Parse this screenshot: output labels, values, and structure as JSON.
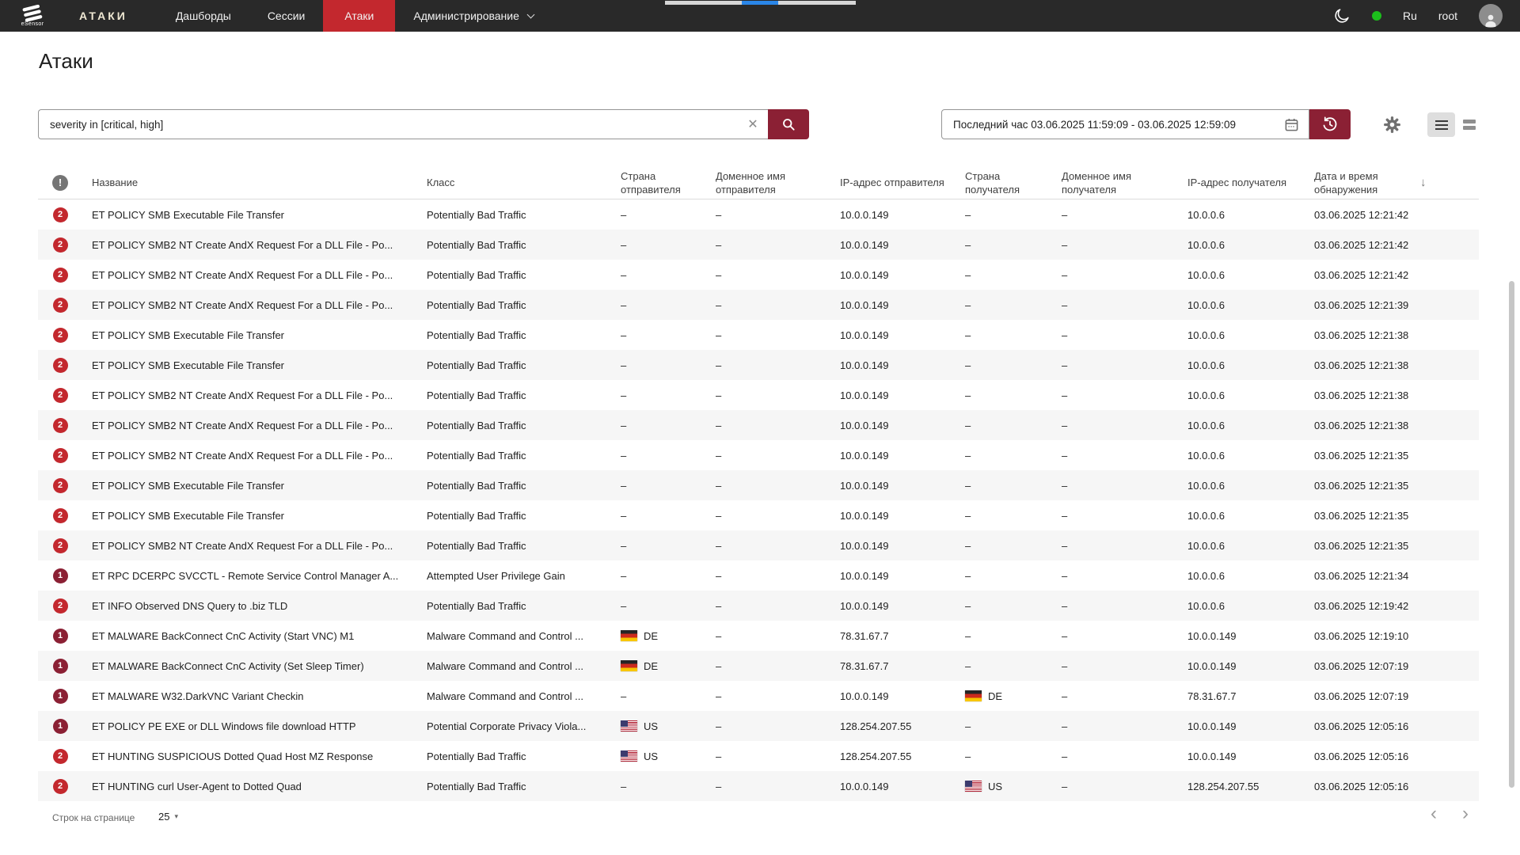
{
  "topnav": {
    "logo_text": "eSensor",
    "brand": "АТАКИ",
    "items": [
      {
        "label": "Дашборды",
        "active": false
      },
      {
        "label": "Сессии",
        "active": false
      },
      {
        "label": "Атаки",
        "active": true
      },
      {
        "label": "Администрирование",
        "active": false,
        "has_dropdown": true
      }
    ],
    "language": "Ru",
    "username": "root"
  },
  "page": {
    "title": "Атаки"
  },
  "toolbar": {
    "search_value": "severity in [critical, high]",
    "date_range": "Последний час 03.06.2025 11:59:09 - 03.06.2025 12:59:09"
  },
  "icons": {
    "warn": "!",
    "clear": "✕",
    "sort_desc": "↓",
    "dropdown": "▾",
    "prev": "‹",
    "next": "›"
  },
  "colors": {
    "nav_bg": "#292929",
    "accent_red": "#c3282e",
    "maroon": "#8b2034",
    "progress_blue": "#2a86e8",
    "status_green": "#1cbe1c"
  },
  "table": {
    "columns": [
      "",
      "Название",
      "Класс",
      "Страна отправителя",
      "Доменное имя отправителя",
      "IP-адрес отправителя",
      "Страна получателя",
      "Доменное имя получателя",
      "IP-адрес получателя",
      "Дата и время обнаружения"
    ],
    "rows": [
      {
        "severity": "2",
        "name": "ET POLICY SMB Executable File Transfer",
        "class": "Potentially Bad Traffic",
        "src_country": "–",
        "src_domain": "–",
        "src_ip": "10.0.0.149",
        "dst_country": "–",
        "dst_domain": "–",
        "dst_ip": "10.0.0.6",
        "time": "03.06.2025 12:21:42"
      },
      {
        "severity": "2",
        "name": "ET POLICY SMB2 NT Create AndX Request For a DLL File - Po...",
        "class": "Potentially Bad Traffic",
        "src_country": "–",
        "src_domain": "–",
        "src_ip": "10.0.0.149",
        "dst_country": "–",
        "dst_domain": "–",
        "dst_ip": "10.0.0.6",
        "time": "03.06.2025 12:21:42"
      },
      {
        "severity": "2",
        "name": "ET POLICY SMB2 NT Create AndX Request For a DLL File - Po...",
        "class": "Potentially Bad Traffic",
        "src_country": "–",
        "src_domain": "–",
        "src_ip": "10.0.0.149",
        "dst_country": "–",
        "dst_domain": "–",
        "dst_ip": "10.0.0.6",
        "time": "03.06.2025 12:21:42"
      },
      {
        "severity": "2",
        "name": "ET POLICY SMB2 NT Create AndX Request For a DLL File - Po...",
        "class": "Potentially Bad Traffic",
        "src_country": "–",
        "src_domain": "–",
        "src_ip": "10.0.0.149",
        "dst_country": "–",
        "dst_domain": "–",
        "dst_ip": "10.0.0.6",
        "time": "03.06.2025 12:21:39"
      },
      {
        "severity": "2",
        "name": "ET POLICY SMB Executable File Transfer",
        "class": "Potentially Bad Traffic",
        "src_country": "–",
        "src_domain": "–",
        "src_ip": "10.0.0.149",
        "dst_country": "–",
        "dst_domain": "–",
        "dst_ip": "10.0.0.6",
        "time": "03.06.2025 12:21:38"
      },
      {
        "severity": "2",
        "name": "ET POLICY SMB Executable File Transfer",
        "class": "Potentially Bad Traffic",
        "src_country": "–",
        "src_domain": "–",
        "src_ip": "10.0.0.149",
        "dst_country": "–",
        "dst_domain": "–",
        "dst_ip": "10.0.0.6",
        "time": "03.06.2025 12:21:38"
      },
      {
        "severity": "2",
        "name": "ET POLICY SMB2 NT Create AndX Request For a DLL File - Po...",
        "class": "Potentially Bad Traffic",
        "src_country": "–",
        "src_domain": "–",
        "src_ip": "10.0.0.149",
        "dst_country": "–",
        "dst_domain": "–",
        "dst_ip": "10.0.0.6",
        "time": "03.06.2025 12:21:38"
      },
      {
        "severity": "2",
        "name": "ET POLICY SMB2 NT Create AndX Request For a DLL File - Po...",
        "class": "Potentially Bad Traffic",
        "src_country": "–",
        "src_domain": "–",
        "src_ip": "10.0.0.149",
        "dst_country": "–",
        "dst_domain": "–",
        "dst_ip": "10.0.0.6",
        "time": "03.06.2025 12:21:38"
      },
      {
        "severity": "2",
        "name": "ET POLICY SMB2 NT Create AndX Request For a DLL File - Po...",
        "class": "Potentially Bad Traffic",
        "src_country": "–",
        "src_domain": "–",
        "src_ip": "10.0.0.149",
        "dst_country": "–",
        "dst_domain": "–",
        "dst_ip": "10.0.0.6",
        "time": "03.06.2025 12:21:35"
      },
      {
        "severity": "2",
        "name": "ET POLICY SMB Executable File Transfer",
        "class": "Potentially Bad Traffic",
        "src_country": "–",
        "src_domain": "–",
        "src_ip": "10.0.0.149",
        "dst_country": "–",
        "dst_domain": "–",
        "dst_ip": "10.0.0.6",
        "time": "03.06.2025 12:21:35"
      },
      {
        "severity": "2",
        "name": "ET POLICY SMB Executable File Transfer",
        "class": "Potentially Bad Traffic",
        "src_country": "–",
        "src_domain": "–",
        "src_ip": "10.0.0.149",
        "dst_country": "–",
        "dst_domain": "–",
        "dst_ip": "10.0.0.6",
        "time": "03.06.2025 12:21:35"
      },
      {
        "severity": "2",
        "name": "ET POLICY SMB2 NT Create AndX Request For a DLL File - Po...",
        "class": "Potentially Bad Traffic",
        "src_country": "–",
        "src_domain": "–",
        "src_ip": "10.0.0.149",
        "dst_country": "–",
        "dst_domain": "–",
        "dst_ip": "10.0.0.6",
        "time": "03.06.2025 12:21:35"
      },
      {
        "severity": "1",
        "name": "ET RPC DCERPC SVCCTL - Remote Service Control Manager A...",
        "class": "Attempted User Privilege Gain",
        "src_country": "–",
        "src_domain": "–",
        "src_ip": "10.0.0.149",
        "dst_country": "–",
        "dst_domain": "–",
        "dst_ip": "10.0.0.6",
        "time": "03.06.2025 12:21:34"
      },
      {
        "severity": "2",
        "name": "ET INFO Observed DNS Query to .biz TLD",
        "class": "Potentially Bad Traffic",
        "src_country": "–",
        "src_domain": "–",
        "src_ip": "10.0.0.149",
        "dst_country": "–",
        "dst_domain": "–",
        "dst_ip": "10.0.0.6",
        "time": "03.06.2025 12:19:42"
      },
      {
        "severity": "1",
        "name": "ET MALWARE BackConnect CnC Activity (Start VNC) M1",
        "class": "Malware Command and Control ...",
        "src_country": "DE",
        "src_domain": "–",
        "src_ip": "78.31.67.7",
        "dst_country": "–",
        "dst_domain": "–",
        "dst_ip": "10.0.0.149",
        "time": "03.06.2025 12:19:10"
      },
      {
        "severity": "1",
        "name": "ET MALWARE BackConnect CnC Activity (Set Sleep Timer)",
        "class": "Malware Command and Control ...",
        "src_country": "DE",
        "src_domain": "–",
        "src_ip": "78.31.67.7",
        "dst_country": "–",
        "dst_domain": "–",
        "dst_ip": "10.0.0.149",
        "time": "03.06.2025 12:07:19"
      },
      {
        "severity": "1",
        "name": "ET MALWARE W32.DarkVNC Variant Checkin",
        "class": "Malware Command and Control ...",
        "src_country": "–",
        "src_domain": "–",
        "src_ip": "10.0.0.149",
        "dst_country": "DE",
        "dst_domain": "–",
        "dst_ip": "78.31.67.7",
        "time": "03.06.2025 12:07:19"
      },
      {
        "severity": "1",
        "name": "ET POLICY PE EXE or DLL Windows file download HTTP",
        "class": "Potential Corporate Privacy Viola...",
        "src_country": "US",
        "src_domain": "–",
        "src_ip": "128.254.207.55",
        "dst_country": "–",
        "dst_domain": "–",
        "dst_ip": "10.0.0.149",
        "time": "03.06.2025 12:05:16"
      },
      {
        "severity": "2",
        "name": "ET HUNTING SUSPICIOUS Dotted Quad Host MZ Response",
        "class": "Potentially Bad Traffic",
        "src_country": "US",
        "src_domain": "–",
        "src_ip": "128.254.207.55",
        "dst_country": "–",
        "dst_domain": "–",
        "dst_ip": "10.0.0.149",
        "time": "03.06.2025 12:05:16"
      },
      {
        "severity": "2",
        "name": "ET HUNTING curl User-Agent to Dotted Quad",
        "class": "Potentially Bad Traffic",
        "src_country": "–",
        "src_domain": "–",
        "src_ip": "10.0.0.149",
        "dst_country": "US",
        "dst_domain": "–",
        "dst_ip": "128.254.207.55",
        "time": "03.06.2025 12:05:16"
      }
    ]
  },
  "footer": {
    "rows_per_page_label": "Строк на странице",
    "rows_per_page": "25"
  }
}
